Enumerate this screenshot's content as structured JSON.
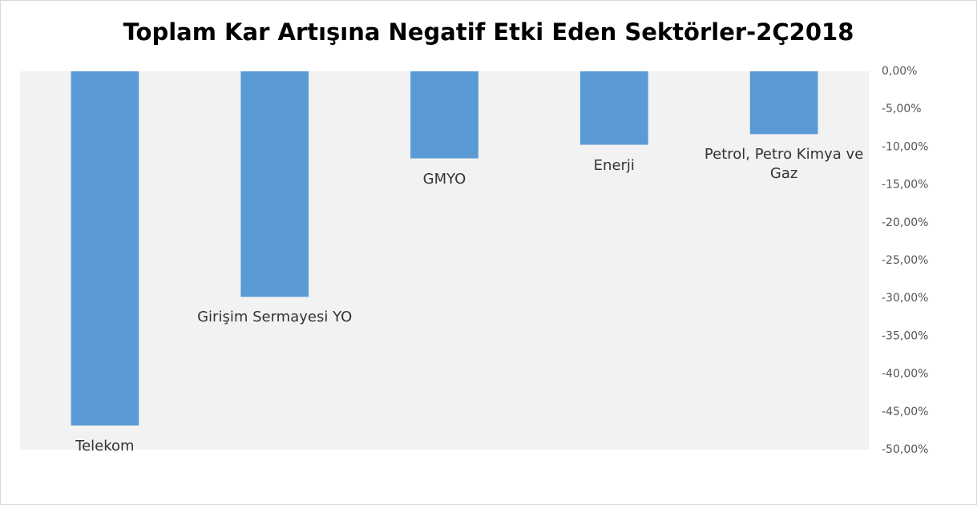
{
  "chart_data": {
    "type": "bar",
    "title": "Toplam Kar Artışına Negatif Etki Eden Sektörler-2Ç2018",
    "categories": [
      "Telekom",
      "Girişim Sermayesi YO",
      "GMYO",
      "Enerji",
      "Petrol, Petro Kimya  ve Gaz"
    ],
    "values": [
      -46.8,
      -29.8,
      -11.5,
      -9.7,
      -8.3
    ],
    "color": "#5b9bd5",
    "ylim": [
      -50,
      0
    ],
    "yticks": [
      {
        "value": 0,
        "label": "0,00%"
      },
      {
        "value": -5,
        "label": "-5,00%"
      },
      {
        "value": -10,
        "label": "-10,00%"
      },
      {
        "value": -15,
        "label": "-15,00%"
      },
      {
        "value": -20,
        "label": "-20,00%"
      },
      {
        "value": -25,
        "label": "-25,00%"
      },
      {
        "value": -30,
        "label": "-30,00%"
      },
      {
        "value": -35,
        "label": "-35,00%"
      },
      {
        "value": -40,
        "label": "-40,00%"
      },
      {
        "value": -45,
        "label": "-45,00%"
      },
      {
        "value": -50,
        "label": "-50,00%"
      }
    ],
    "yaxis_side": "right"
  }
}
